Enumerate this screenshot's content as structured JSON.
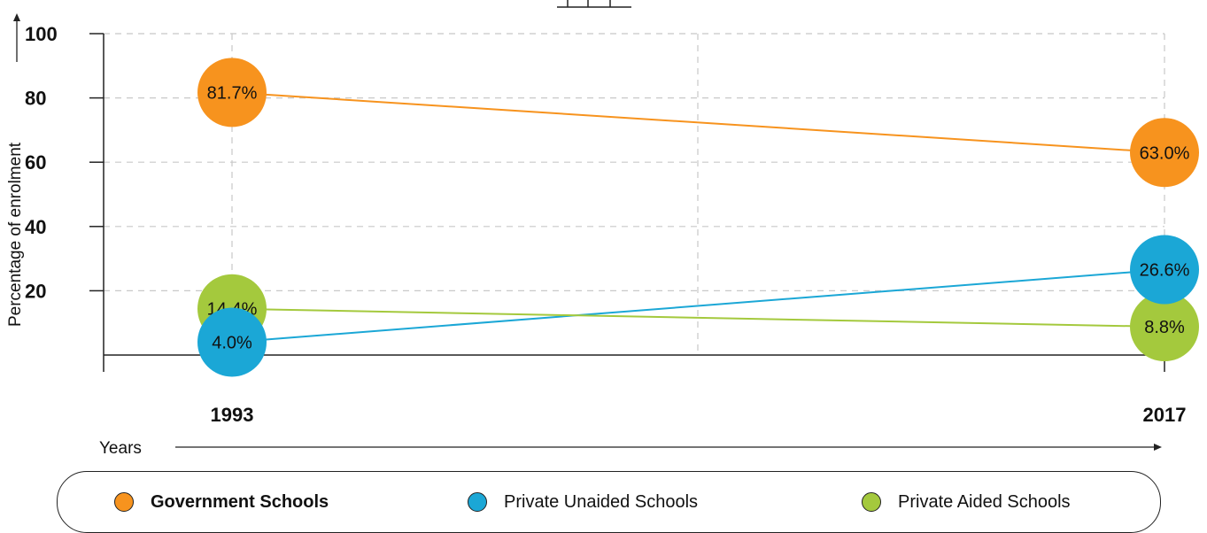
{
  "chart_data": {
    "type": "line",
    "ylabel": "Percentage of enrolment",
    "xlabel": "Years",
    "categories": [
      "1993",
      "2017"
    ],
    "yticks": [
      20,
      40,
      60,
      80,
      100
    ],
    "ylim": [
      0,
      100
    ],
    "grid": true,
    "series": [
      {
        "name": "Government Schools",
        "color": "#F7931E",
        "values": [
          81.7,
          63.0
        ],
        "labels": [
          "81.7%",
          "63.0%"
        ]
      },
      {
        "name": "Private Unaided Schools",
        "color": "#1BA7D6",
        "values": [
          4.0,
          26.6
        ],
        "labels": [
          "4.0%",
          "26.6%"
        ]
      },
      {
        "name": "Private Aided Schools",
        "color": "#A4C93D",
        "values": [
          14.4,
          8.8
        ],
        "labels": [
          "14.4%",
          "8.8%"
        ]
      }
    ]
  },
  "legend": {
    "items": [
      {
        "label": "Government Schools",
        "color": "#F7931E"
      },
      {
        "label": "Private Unaided Schools",
        "color": "#1BA7D6"
      },
      {
        "label": "Private Aided Schools",
        "color": "#A4C93D"
      }
    ]
  }
}
